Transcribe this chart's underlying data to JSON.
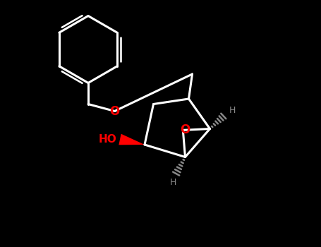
{
  "bg_color": "#000000",
  "bond_color": "#ffffff",
  "red_color": "#ff0000",
  "gray_color": "#888888",
  "line_width": 2.2,
  "figsize": [
    4.55,
    3.5
  ],
  "dpi": 100,
  "xlim": [
    0,
    9.1
  ],
  "ylim": [
    0,
    7.0
  ]
}
